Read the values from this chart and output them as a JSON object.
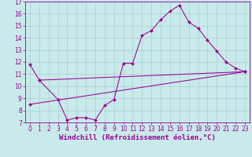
{
  "xlabel": "Windchill (Refroidissement éolien,°C)",
  "xlim": [
    -0.5,
    23.5
  ],
  "ylim": [
    7,
    17
  ],
  "yticks": [
    7,
    8,
    9,
    10,
    11,
    12,
    13,
    14,
    15,
    16,
    17
  ],
  "xticks": [
    0,
    1,
    2,
    3,
    4,
    5,
    6,
    7,
    8,
    9,
    10,
    11,
    12,
    13,
    14,
    15,
    16,
    17,
    18,
    19,
    20,
    21,
    22,
    23
  ],
  "line_color": "#990099",
  "bg_color": "#c8eaea",
  "grid_color": "#a8cece",
  "curve1_x": [
    0,
    1,
    3,
    4,
    5,
    6,
    7,
    8,
    9,
    10,
    11,
    12,
    13,
    14,
    15,
    16,
    17,
    18,
    19,
    20,
    21,
    22,
    23
  ],
  "curve1_y": [
    11.8,
    10.5,
    8.9,
    7.2,
    7.4,
    7.4,
    7.2,
    8.4,
    8.9,
    11.9,
    11.9,
    14.2,
    14.6,
    15.5,
    16.2,
    16.7,
    15.3,
    14.8,
    13.8,
    12.9,
    12.0,
    11.5,
    11.2
  ],
  "curve2_x": [
    1,
    23
  ],
  "curve2_y": [
    10.5,
    11.2
  ],
  "curve3_x": [
    0,
    23
  ],
  "curve3_y": [
    8.5,
    11.2
  ],
  "tick_fontsize": 5.5,
  "label_fontsize": 6.5
}
